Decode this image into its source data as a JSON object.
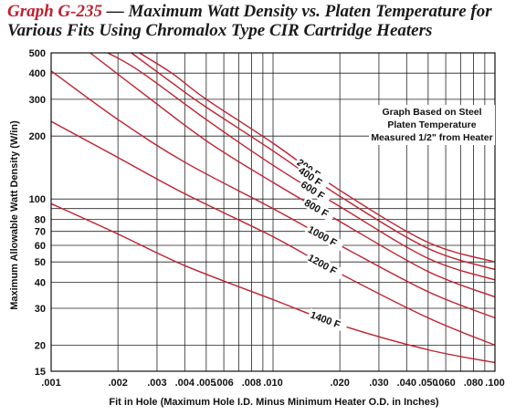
{
  "title_id": "Graph G-235",
  "title_rest": " — Maximum Watt Density vs. Platen Temperature for Various Fits Using Chromalox Type CIR Cartridge Heaters",
  "chart_data": {
    "type": "line",
    "title": "Graph G-235 — Maximum Watt Density vs. Platen Temperature for Various Fits Using Chromalox Type CIR Cartridge Heaters",
    "xlabel": "Fit in Hole (Maximum Hole I.D. Minus Minimum Heater O.D. in Inches)",
    "ylabel": "Maximum Allowable Watt Density (W/in)",
    "x_scale": "log",
    "y_scale": "log",
    "xlim": [
      0.001,
      0.1
    ],
    "ylim": [
      15,
      500
    ],
    "grid": true,
    "line_color": "#c0202e",
    "x_tick_labels": [
      {
        "v": 0.001,
        "t": ".001"
      },
      {
        "v": 0.002,
        "t": ".002"
      },
      {
        "v": 0.003,
        "t": ".003"
      },
      {
        "v": 0.004,
        "t": ".004"
      },
      {
        "v": 0.005,
        "t": ".005"
      },
      {
        "v": 0.006,
        "t": ".006"
      },
      {
        "v": 0.008,
        "t": ".008"
      },
      {
        "v": 0.01,
        "t": ".010"
      },
      {
        "v": 0.02,
        "t": ".020"
      },
      {
        "v": 0.03,
        "t": ".030"
      },
      {
        "v": 0.04,
        "t": ".040"
      },
      {
        "v": 0.05,
        "t": ".050"
      },
      {
        "v": 0.06,
        "t": ".060"
      },
      {
        "v": 0.08,
        "t": ".080"
      },
      {
        "v": 0.1,
        "t": ".100"
      }
    ],
    "y_tick_labels": [
      {
        "v": 15,
        "t": "15"
      },
      {
        "v": 20,
        "t": "20"
      },
      {
        "v": 30,
        "t": "30"
      },
      {
        "v": 40,
        "t": "40"
      },
      {
        "v": 50,
        "t": "50"
      },
      {
        "v": 60,
        "t": "60"
      },
      {
        "v": 70,
        "t": "70"
      },
      {
        "v": 80,
        "t": "80"
      },
      {
        "v": 100,
        "t": "100"
      },
      {
        "v": 200,
        "t": "200"
      },
      {
        "v": 300,
        "t": "300"
      },
      {
        "v": 400,
        "t": "400"
      },
      {
        "v": 500,
        "t": "500"
      }
    ],
    "series": [
      {
        "name": "200 F",
        "x": [
          0.0025,
          0.0035,
          0.005,
          0.01,
          0.02,
          0.05,
          0.1
        ],
        "y": [
          500,
          400,
          300,
          185,
          110,
          62,
          50
        ]
      },
      {
        "name": "400 F",
        "x": [
          0.0023,
          0.0035,
          0.005,
          0.01,
          0.02,
          0.05,
          0.1
        ],
        "y": [
          500,
          360,
          275,
          170,
          103,
          58,
          46
        ]
      },
      {
        "name": "600 F",
        "x": [
          0.0018,
          0.0025,
          0.005,
          0.01,
          0.02,
          0.05,
          0.1
        ],
        "y": [
          500,
          410,
          240,
          145,
          92,
          52,
          41
        ]
      },
      {
        "name": "800 F",
        "x": [
          0.0015,
          0.0025,
          0.005,
          0.01,
          0.02,
          0.05,
          0.1
        ],
        "y": [
          500,
          330,
          190,
          120,
          78,
          45,
          34
        ]
      },
      {
        "name": "1000 F",
        "x": [
          0.001,
          0.002,
          0.004,
          0.01,
          0.02,
          0.05,
          0.1
        ],
        "y": [
          410,
          240,
          150,
          90,
          60,
          36,
          27
        ]
      },
      {
        "name": "1200 F",
        "x": [
          0.001,
          0.002,
          0.004,
          0.01,
          0.02,
          0.05,
          0.1
        ],
        "y": [
          235,
          158,
          106,
          66,
          44,
          27,
          20
        ]
      },
      {
        "name": "1400 F",
        "x": [
          0.001,
          0.002,
          0.004,
          0.01,
          0.02,
          0.05,
          0.1
        ],
        "y": [
          95,
          68,
          48,
          33,
          25,
          19,
          16.5
        ]
      }
    ],
    "annotations": [
      "Graph Based on Steel",
      "Platen Temperature",
      "Measured 1/2\" from Heater"
    ]
  }
}
